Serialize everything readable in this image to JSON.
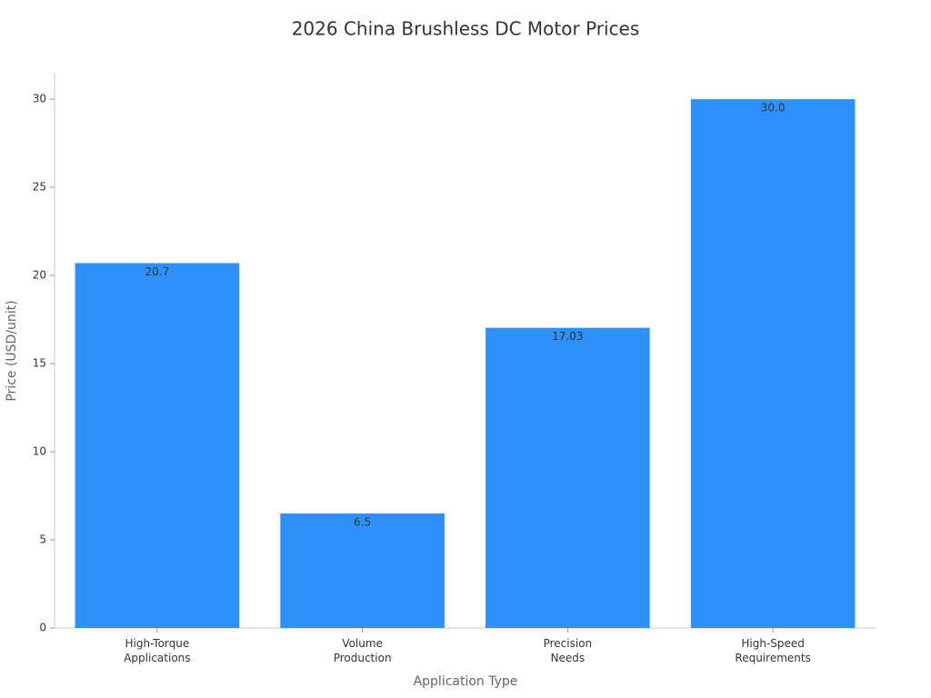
{
  "chart_data": {
    "type": "bar",
    "title": "2026 China Brushless DC Motor Prices",
    "x_label": "Application Type",
    "y_label": "Price (USD/unit)",
    "categories": [
      [
        "High-Torque",
        "Applications"
      ],
      [
        "Volume",
        "Production"
      ],
      [
        "Precision",
        "Needs"
      ],
      [
        "High-Speed",
        "Requirements"
      ]
    ],
    "values": [
      20.7,
      6.5,
      17.03,
      30.0
    ],
    "value_labels": [
      "20.7",
      "6.5",
      "17.03",
      "30.0"
    ],
    "color": "#2e90fa",
    "ylim": [
      0,
      31.5
    ],
    "yticks": [
      0,
      5,
      10,
      15,
      20,
      25,
      30
    ],
    "grid": false
  }
}
